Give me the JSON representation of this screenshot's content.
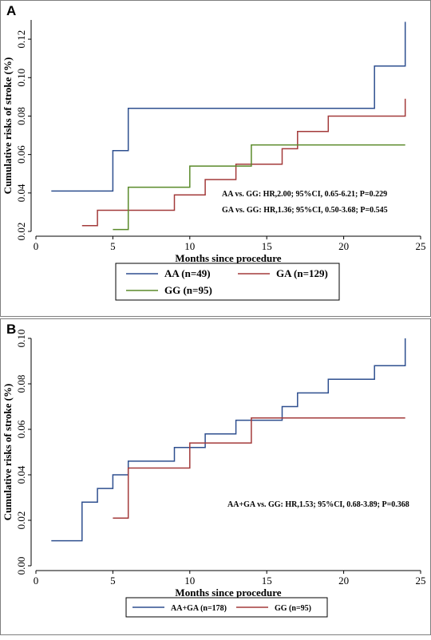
{
  "figure": {
    "panels": [
      "A",
      "B"
    ]
  },
  "chart_data": [
    {
      "type": "line",
      "panel": "A",
      "xlabel": "Months since procedure",
      "ylabel": "Cumulative risks of stroke (%)",
      "xlim": [
        0,
        25
      ],
      "ylim": [
        0.02,
        0.13
      ],
      "xticks": [
        0,
        5,
        10,
        15,
        20,
        25
      ],
      "yticks": [
        0.02,
        0.04,
        0.06,
        0.08,
        0.1,
        0.12
      ],
      "ytick_labels": [
        "0.02",
        "0.04",
        "0.06",
        "0.08",
        "0.10",
        "0.12"
      ],
      "grid": false,
      "legend_position": "bottom",
      "series": [
        {
          "name": "AA (n=49)",
          "color": "#2e4f8f",
          "x": [
            1,
            5,
            5,
            6,
            6,
            22,
            22,
            24,
            24
          ],
          "y": [
            0.041,
            0.041,
            0.062,
            0.062,
            0.084,
            0.084,
            0.106,
            0.106,
            0.129
          ]
        },
        {
          "name": "GA (n=129)",
          "color": "#a33a3a",
          "x": [
            3,
            4,
            4,
            9,
            9,
            11,
            11,
            13,
            13,
            16,
            16,
            17,
            17,
            19,
            19,
            24,
            24
          ],
          "y": [
            0.023,
            0.023,
            0.031,
            0.031,
            0.039,
            0.039,
            0.047,
            0.047,
            0.055,
            0.055,
            0.063,
            0.063,
            0.072,
            0.072,
            0.08,
            0.08,
            0.089
          ]
        },
        {
          "name": "GG (n=95)",
          "color": "#5a8a2a",
          "x": [
            5,
            6,
            6,
            10,
            10,
            14,
            14,
            24
          ],
          "y": [
            0.021,
            0.021,
            0.043,
            0.043,
            0.054,
            0.054,
            0.065,
            0.065
          ]
        }
      ],
      "annotations": [
        "AA vs. GG: HR,2.00; 95%CI, 0.65-6.21; P=0.229",
        "GA vs. GG: HR,1.36; 95%CI, 0.50-3.68; P=0.545"
      ]
    },
    {
      "type": "line",
      "panel": "B",
      "xlabel": "Months since procedure",
      "ylabel": "Cumulative risks of stroke (%)",
      "xlim": [
        0,
        25
      ],
      "ylim": [
        0,
        0.1
      ],
      "xticks": [
        0,
        5,
        10,
        15,
        20,
        25
      ],
      "yticks": [
        0,
        0.02,
        0.04,
        0.06,
        0.08,
        0.1
      ],
      "ytick_labels": [
        "0.00",
        "0.02",
        "0.04",
        "0.06",
        "0.08",
        "0.10"
      ],
      "grid": false,
      "legend_position": "bottom",
      "series": [
        {
          "name": "AA+GA (n=178)",
          "color": "#2e4f8f",
          "x": [
            1,
            3,
            3,
            4,
            4,
            5,
            5,
            6,
            6,
            9,
            9,
            11,
            11,
            13,
            13,
            16,
            16,
            17,
            17,
            19,
            19,
            22,
            22,
            24,
            24
          ],
          "y": [
            0.011,
            0.011,
            0.028,
            0.028,
            0.034,
            0.034,
            0.04,
            0.04,
            0.046,
            0.046,
            0.052,
            0.052,
            0.058,
            0.058,
            0.064,
            0.064,
            0.07,
            0.07,
            0.076,
            0.076,
            0.082,
            0.082,
            0.088,
            0.088,
            0.1
          ]
        },
        {
          "name": "GG (n=95)",
          "color": "#a33a3a",
          "x": [
            5,
            6,
            6,
            10,
            10,
            14,
            14,
            24
          ],
          "y": [
            0.021,
            0.021,
            0.043,
            0.043,
            0.054,
            0.054,
            0.065,
            0.065
          ]
        }
      ],
      "annotations": [
        "AA+GA vs. GG: HR,1.53; 95%CI, 0.68-3.89; P=0.368"
      ]
    }
  ]
}
